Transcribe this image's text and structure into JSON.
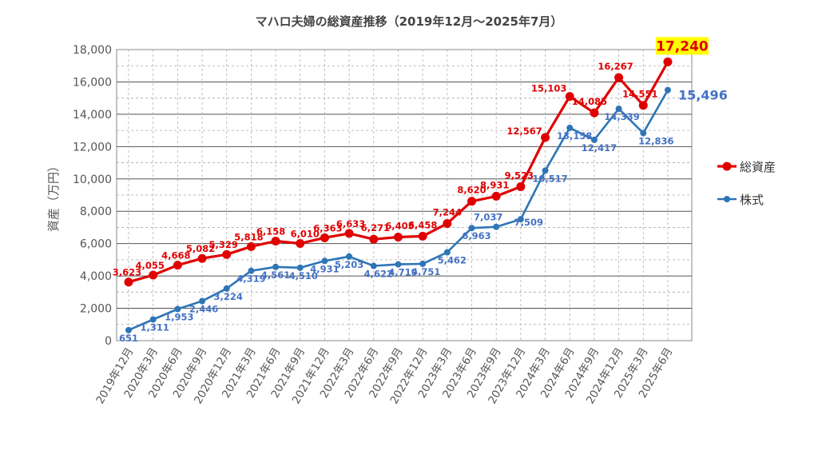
{
  "chart_data": {
    "type": "line",
    "title": "マハロ夫婦の総資産推移（2019年12月～2025年7月）",
    "ylabel": "資産（万円）",
    "xlabel": "",
    "ylim": [
      0,
      18000
    ],
    "y_ticks": [
      "0",
      "2,000",
      "4,000",
      "6,000",
      "8,000",
      "10,000",
      "12,000",
      "14,000",
      "16,000",
      "18,000"
    ],
    "grid": true,
    "legend_position": "right",
    "categories": [
      "2019年12月",
      "2020年3月",
      "2020年6月",
      "2020年9月",
      "2020年12月",
      "2021年3月",
      "2021年6月",
      "2021年9月",
      "2021年12月",
      "2022年3月",
      "2022年6月",
      "2022年9月",
      "2022年12月",
      "2023年3月",
      "2023年6月",
      "2023年9月",
      "2023年12月",
      "2024年3月",
      "2024年6月",
      "2024年9月",
      "2024年12月",
      "2025年3月",
      "2025年6月"
    ],
    "series": [
      {
        "name": "総資産",
        "color": "#e00000",
        "values": [
          3623,
          4055,
          4668,
          5082,
          5329,
          5818,
          6158,
          6010,
          6363,
          6633,
          6271,
          6405,
          6458,
          7244,
          8620,
          8931,
          9523,
          12567,
          15103,
          14085,
          16267,
          14551,
          17240
        ],
        "labels": [
          "3,623",
          "4,055",
          "4,668",
          "5,082",
          "5,329",
          "5,818",
          "6,158",
          "6,010",
          "6,363",
          "6,633",
          "6,271",
          "6,405",
          "6,458",
          "7,244",
          "8,620",
          "8,931",
          "9,523",
          "12,567",
          "15,103",
          "14,085",
          "16,267",
          "14,551",
          "17,240"
        ],
        "last_label_highlight": "#ffff00"
      },
      {
        "name": "株式",
        "color": "#2e75b6",
        "values": [
          651,
          1311,
          1953,
          2446,
          3224,
          4319,
          4561,
          4510,
          4931,
          5203,
          4622,
          4719,
          4751,
          5462,
          6963,
          7037,
          7509,
          10517,
          13158,
          12417,
          14339,
          12836,
          15496
        ],
        "labels": [
          "651",
          "1,311",
          "1,953",
          "2,446",
          "3,224",
          "4,319",
          "4,561",
          "4,510",
          "4,931",
          "5,203",
          "4,622",
          "4,719",
          "4,751",
          "5,462",
          "6,963",
          "7,037",
          "7,509",
          "10,517",
          "13,158",
          "12,417",
          "14,339",
          "12,836",
          "15,496"
        ]
      }
    ]
  }
}
